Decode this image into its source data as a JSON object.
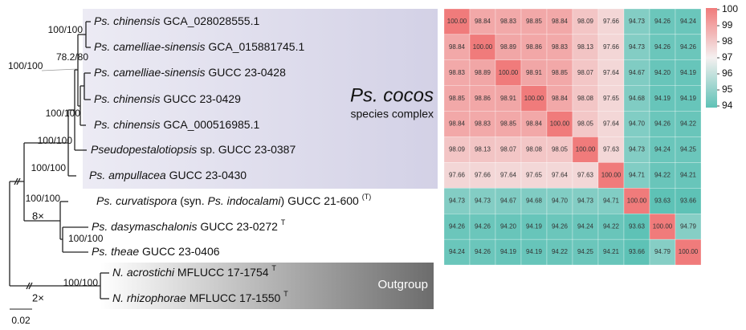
{
  "group_label": {
    "title": "Ps. cocos",
    "subtitle": "species complex"
  },
  "outgroup_label": "Outgroup",
  "breaks": [
    "8×",
    "2×"
  ],
  "scale_bar": "0.02",
  "support": [
    "100/100",
    "78.2/80",
    "100/100",
    "100/100",
    "100/100",
    "100/100",
    "100/100",
    "100/100",
    "100/100"
  ],
  "taxa": [
    {
      "label": [
        {
          "text": "Ps. chinensis",
          "style": "italic"
        },
        {
          "text": " GCA_028028555.1"
        }
      ]
    },
    {
      "label": [
        {
          "text": "Ps. camelliae-sinensis",
          "style": "italic"
        },
        {
          "text": " GCA_015881745.1"
        }
      ]
    },
    {
      "label": [
        {
          "text": "Ps. camelliae-sinensis",
          "style": "italic"
        },
        {
          "text": " GUCC 23-0428"
        }
      ]
    },
    {
      "label": [
        {
          "text": "Ps. chinensis",
          "style": "italic"
        },
        {
          "text": " GUCC 23-0429"
        }
      ]
    },
    {
      "label": [
        {
          "text": "Ps. chinensis",
          "style": "italic"
        },
        {
          "text": " GCA_000516985.1"
        }
      ]
    },
    {
      "label": [
        {
          "text": "Pseudopestalotiopsis",
          "style": "italic"
        },
        {
          "text": " sp. GUCC 23-0387"
        }
      ]
    },
    {
      "label": [
        {
          "text": "Ps. ampullacea",
          "style": "italic"
        },
        {
          "text": " GUCC 23-0430"
        }
      ]
    },
    {
      "label": [
        {
          "text": "Ps. curvatispora",
          "style": "italic"
        },
        {
          "text": " (syn. "
        },
        {
          "text": "Ps. indocalami",
          "style": "italic"
        },
        {
          "text": ") GUCC 21-600 "
        },
        {
          "text": "(T)",
          "style": "sup"
        }
      ]
    },
    {
      "label": [
        {
          "text": "Ps. dasymaschalonis",
          "style": "italic"
        },
        {
          "text": " GUCC 23-0272 "
        },
        {
          "text": "T",
          "style": "sup"
        }
      ]
    },
    {
      "label": [
        {
          "text": "Ps. theae",
          "style": "italic"
        },
        {
          "text": " GUCC 23-0406"
        }
      ]
    },
    {
      "label": [
        {
          "text": "N. acrostichi",
          "style": "italic"
        },
        {
          "text": " MFLUCC 17-1754 "
        },
        {
          "text": "T",
          "style": "sup"
        }
      ]
    },
    {
      "label": [
        {
          "text": "N. rhizophorae",
          "style": "italic"
        },
        {
          "text": " MFLUCC 17-1550 "
        },
        {
          "text": "T",
          "style": "sup"
        }
      ]
    }
  ],
  "heatmap": {
    "matrix": [
      [
        "100.00",
        "98.84",
        "98.83",
        "98.85",
        "98.84",
        "98.09",
        "97.66",
        "94.73",
        "94.26",
        "94.24"
      ],
      [
        "98.84",
        "100.00",
        "98.89",
        "98.86",
        "98.83",
        "98.13",
        "97.66",
        "94.73",
        "94.26",
        "94.26"
      ],
      [
        "98.83",
        "98.89",
        "100.00",
        "98.91",
        "98.85",
        "98.07",
        "97.64",
        "94.67",
        "94.20",
        "94.19"
      ],
      [
        "98.85",
        "98.86",
        "98.91",
        "100.00",
        "98.84",
        "98.08",
        "97.65",
        "94.68",
        "94.19",
        "94.19"
      ],
      [
        "98.84",
        "98.83",
        "98.85",
        "98.84",
        "100.00",
        "98.05",
        "97.64",
        "94.70",
        "94.26",
        "94.22"
      ],
      [
        "98.09",
        "98.13",
        "98.07",
        "98.08",
        "98.05",
        "100.00",
        "97.63",
        "94.73",
        "94.24",
        "94.25"
      ],
      [
        "97.66",
        "97.66",
        "97.64",
        "97.65",
        "97.64",
        "97.63",
        "100.00",
        "94.71",
        "94.22",
        "94.21"
      ],
      [
        "94.73",
        "94.73",
        "94.67",
        "94.68",
        "94.70",
        "94.73",
        "94.71",
        "100.00",
        "93.63",
        "93.66"
      ],
      [
        "94.26",
        "94.26",
        "94.20",
        "94.19",
        "94.26",
        "94.24",
        "94.22",
        "93.63",
        "100.00",
        "94.79"
      ],
      [
        "94.24",
        "94.26",
        "94.19",
        "94.19",
        "94.22",
        "94.25",
        "94.21",
        "93.66",
        "94.79",
        "100.00"
      ]
    ],
    "colorbar_ticks": [
      100,
      99,
      98,
      97,
      96,
      95,
      94
    ],
    "colors": {
      "low": "#5ec2b6",
      "mid": "#f4f0f0",
      "high": "#f07b7b"
    }
  }
}
